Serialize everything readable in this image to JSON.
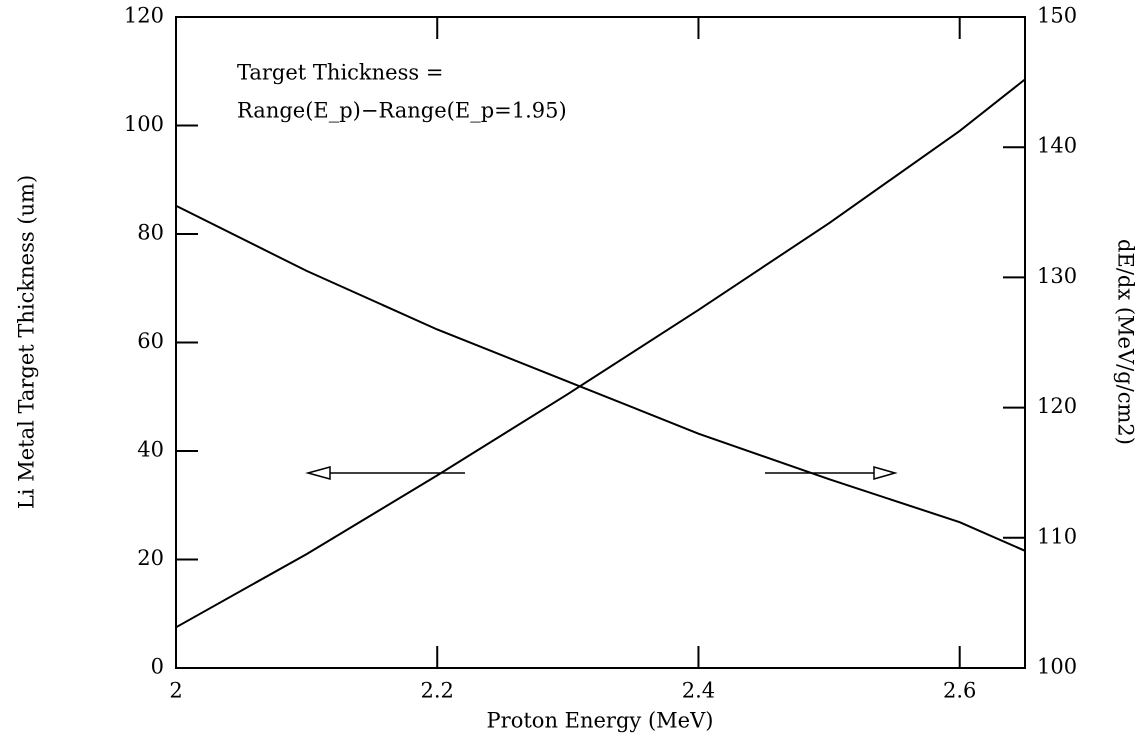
{
  "chart_data": {
    "type": "line",
    "x_label": "Proton Energy (MeV)",
    "y_label": "Li Metal Target Thickness (um)",
    "y2_label": "dE/dx (MeV/g/cm2)",
    "annotations": [
      "Target Thickness =",
      "Range(E_p)−Range(E_p=1.95)"
    ],
    "x": [
      2.0,
      2.1,
      2.2,
      2.3,
      2.4,
      2.5,
      2.6,
      2.65
    ],
    "series": [
      {
        "name": "Target Thickness",
        "color": "#000000",
        "axis": "y",
        "values": [
          7.5,
          21,
          35.5,
          50.5,
          66,
          82,
          99,
          108.5
        ]
      },
      {
        "name": "dE/dx",
        "color": "#000000",
        "axis": "y2",
        "values": [
          135.5,
          130.5,
          126,
          122,
          118,
          114.5,
          111.2,
          109
        ]
      }
    ],
    "xlim": [
      2,
      2.65
    ],
    "xticks": [
      2,
      2.2,
      2.4,
      2.6
    ],
    "ylim": [
      0,
      120
    ],
    "yticks": [
      0,
      20,
      40,
      60,
      80,
      100,
      120
    ],
    "y2lim": [
      100,
      150
    ],
    "y2ticks": [
      100,
      110,
      120,
      130,
      140,
      150
    ]
  }
}
